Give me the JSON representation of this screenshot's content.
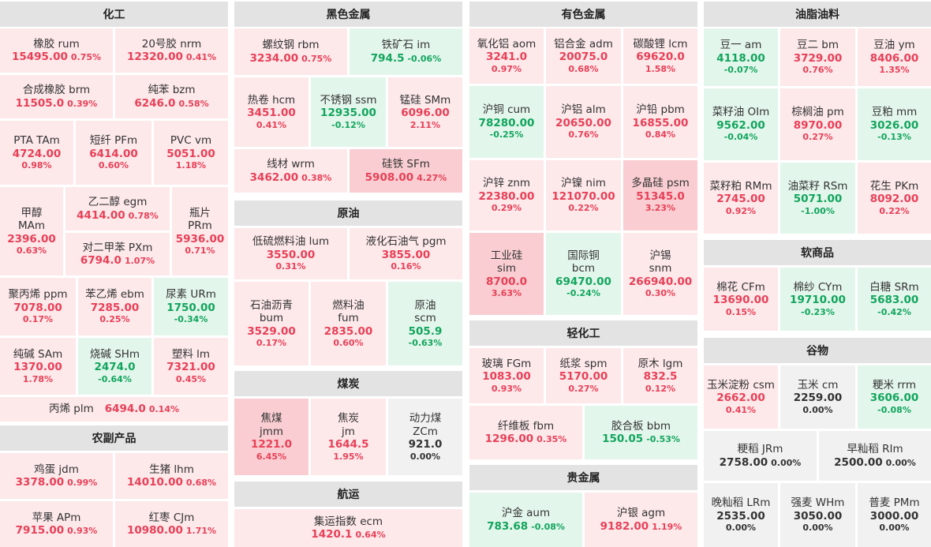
{
  "sections": {
    "huagong": "化工",
    "nongfu": "农副产品",
    "heise": "黑色金属",
    "yuanyou": "原油",
    "meitan": "煤炭",
    "hangyun": "航运",
    "youse": "有色金属",
    "qinghua": "轻化工",
    "guijinshu": "贵金属",
    "youzhi": "油脂油料",
    "ruan": "软商品",
    "guwu": "谷物"
  },
  "colors": {
    "up": "#e84057",
    "down": "#11a55c",
    "flat": "#333333"
  },
  "items": {
    "ru": {
      "name": "橡胶  rum",
      "price": "15495.00",
      "pct": "0.75%"
    },
    "nr": {
      "name": "20号胶  nrm",
      "price": "12320.00",
      "pct": "0.41%"
    },
    "br": {
      "name": "合成橡胶  brm",
      "price": "11505.0",
      "pct": "0.39%"
    },
    "bz": {
      "name": "纯苯  bzm",
      "price": "6246.0",
      "pct": "0.58%"
    },
    "ta": {
      "name": "PTA  TAm",
      "price": "4724.00",
      "pct": "0.98%"
    },
    "pf": {
      "name": "短纤  PFm",
      "price": "6414.00",
      "pct": "0.60%"
    },
    "v": {
      "name": "PVC  vm",
      "price": "5051.00",
      "pct": "1.18%"
    },
    "ma": {
      "name1": "甲醇",
      "name2": "MAm",
      "price": "2396.00",
      "pct": "0.63%"
    },
    "eg": {
      "name": "乙二醇  egm",
      "price": "4414.00",
      "pct": "0.78%"
    },
    "px": {
      "name": "对二甲苯  PXm",
      "price": "6794.0",
      "pct": "1.07%"
    },
    "pr": {
      "name1": "瓶片",
      "name2": "PRm",
      "price": "5936.00",
      "pct": "0.71%"
    },
    "pp": {
      "name": "聚丙烯  ppm",
      "price": "7078.00",
      "pct": "0.17%"
    },
    "eb": {
      "name": "苯乙烯  ebm",
      "price": "7285.00",
      "pct": "0.25%"
    },
    "ur": {
      "name": "尿素  URm",
      "price": "1750.00",
      "pct": "-0.34%"
    },
    "sa": {
      "name": "纯碱  SAm",
      "price": "1370.00",
      "pct": "1.78%"
    },
    "sh": {
      "name": "烧碱  SHm",
      "price": "2474.0",
      "pct": "-0.64%"
    },
    "l": {
      "name": "塑料  lm",
      "price": "7321.00",
      "pct": "0.45%"
    },
    "pl": {
      "name": "丙烯  plm",
      "price": "6494.0",
      "pct": "0.14%"
    },
    "jd": {
      "name": "鸡蛋  jdm",
      "price": "3378.00",
      "pct": "0.99%"
    },
    "lh": {
      "name": "生猪  lhm",
      "price": "14010.00",
      "pct": "0.68%"
    },
    "ap": {
      "name": "苹果  APm",
      "price": "7915.00",
      "pct": "0.93%"
    },
    "cj": {
      "name": "红枣  CJm",
      "price": "10980.00",
      "pct": "1.71%"
    },
    "rb": {
      "name": "螺纹钢  rbm",
      "price": "3234.00",
      "pct": "0.75%"
    },
    "i": {
      "name": "铁矿石  im",
      "price": "794.5",
      "pct": "-0.06%"
    },
    "hc": {
      "name": "热卷  hcm",
      "price": "3451.00",
      "pct": "0.41%"
    },
    "ss": {
      "name": "不锈钢  ssm",
      "price": "12935.00",
      "pct": "-0.12%"
    },
    "sm": {
      "name": "锰硅  SMm",
      "price": "6096.00",
      "pct": "2.11%"
    },
    "wr": {
      "name": "线材  wrm",
      "price": "3462.00",
      "pct": "0.38%"
    },
    "sf": {
      "name": "硅铁  SFm",
      "price": "5908.00",
      "pct": "4.27%"
    },
    "lu": {
      "name": "低硫燃料油  lum",
      "price": "3550.00",
      "pct": "0.31%"
    },
    "pg": {
      "name": "液化石油气  pgm",
      "price": "3855.00",
      "pct": "0.16%"
    },
    "bu": {
      "name1": "石油沥青",
      "name2": "bum",
      "price": "3529.00",
      "pct": "0.17%"
    },
    "fu": {
      "name1": "燃料油",
      "name2": "fum",
      "price": "2835.00",
      "pct": "0.60%"
    },
    "sc": {
      "name1": "原油",
      "name2": "scm",
      "price": "505.9",
      "pct": "-0.63%"
    },
    "jm": {
      "name1": "焦煤",
      "name2": "jmm",
      "price": "1221.0",
      "pct": "6.45%"
    },
    "j": {
      "name1": "焦炭",
      "name2": "jm",
      "price": "1644.5",
      "pct": "1.95%"
    },
    "zc": {
      "name1": "动力煤",
      "name2": "ZCm",
      "price": "921.0",
      "pct": "0.00%"
    },
    "ec": {
      "name": "集运指数  ecm",
      "price": "1420.1",
      "pct": "0.64%"
    },
    "ao": {
      "name": "氧化铝  aom",
      "price": "3241.0",
      "pct": "0.97%"
    },
    "ad": {
      "name": "铝合金  adm",
      "price": "20075.0",
      "pct": "0.68%"
    },
    "lc": {
      "name": "碳酸锂  lcm",
      "price": "69620.0",
      "pct": "1.58%"
    },
    "cu": {
      "name": "沪铜  cum",
      "price": "78280.00",
      "pct": "-0.25%"
    },
    "al": {
      "name": "沪铝  alm",
      "price": "20650.00",
      "pct": "0.76%"
    },
    "pb": {
      "name": "沪铅  pbm",
      "price": "16855.00",
      "pct": "0.84%"
    },
    "zn": {
      "name": "沪锌  znm",
      "price": "22380.00",
      "pct": "0.29%"
    },
    "ni": {
      "name": "沪镍  nim",
      "price": "121070.00",
      "pct": "0.22%"
    },
    "ps": {
      "name": "多晶硅  psm",
      "price": "51345.0",
      "pct": "3.23%"
    },
    "si": {
      "name1": "工业硅",
      "name2": "sim",
      "price": "8700.0",
      "pct": "3.63%"
    },
    "bc": {
      "name1": "国际铜",
      "name2": "bcm",
      "price": "69470.00",
      "pct": "-0.24%"
    },
    "sn": {
      "name1": "沪锡",
      "name2": "snm",
      "price": "266940.00",
      "pct": "0.30%"
    },
    "fg": {
      "name": "玻璃  FGm",
      "price": "1083.00",
      "pct": "0.93%"
    },
    "sp": {
      "name": "纸浆  spm",
      "price": "5170.00",
      "pct": "0.27%"
    },
    "lg": {
      "name": "原木  lgm",
      "price": "832.5",
      "pct": "0.12%"
    },
    "fb": {
      "name": "纤维板  fbm",
      "price": "1296.00",
      "pct": "0.35%"
    },
    "bb": {
      "name": "胶合板  bbm",
      "price": "150.05",
      "pct": "-0.53%"
    },
    "au": {
      "name": "沪金  aum",
      "price": "783.68",
      "pct": "-0.08%"
    },
    "ag": {
      "name": "沪银  agm",
      "price": "9182.00",
      "pct": "1.19%"
    },
    "a": {
      "name": "豆一  am",
      "price": "4118.00",
      "pct": "-0.07%"
    },
    "b": {
      "name": "豆二  bm",
      "price": "3729.00",
      "pct": "0.76%"
    },
    "y": {
      "name": "豆油  ym",
      "price": "8406.00",
      "pct": "1.35%"
    },
    "oi": {
      "name": "菜籽油  OIm",
      "price": "9562.00",
      "pct": "-0.04%"
    },
    "p": {
      "name": "棕榈油  pm",
      "price": "8970.00",
      "pct": "0.27%"
    },
    "m": {
      "name": "豆粕  mm",
      "price": "3026.00",
      "pct": "-0.13%"
    },
    "rm": {
      "name": "菜籽粕  RMm",
      "price": "2745.00",
      "pct": "0.92%"
    },
    "rs": {
      "name": "油菜籽  RSm",
      "price": "5071.00",
      "pct": "-1.00%"
    },
    "pk": {
      "name": "花生  PKm",
      "price": "8092.00",
      "pct": "0.22%"
    },
    "cf": {
      "name": "棉花  CFm",
      "price": "13690.00",
      "pct": "0.15%"
    },
    "cy": {
      "name": "棉纱  CYm",
      "price": "19710.00",
      "pct": "-0.23%"
    },
    "sr": {
      "name": "白糖  SRm",
      "price": "5683.00",
      "pct": "-0.42%"
    },
    "cs": {
      "name": "玉米淀粉  csm",
      "price": "2662.00",
      "pct": "0.41%"
    },
    "c": {
      "name": "玉米  cm",
      "price": "2259.00",
      "pct": "0.00%"
    },
    "rr": {
      "name": "粳米  rrm",
      "price": "3606.00",
      "pct": "-0.08%"
    },
    "jr": {
      "name": "粳稻  JRm",
      "price": "2758.00",
      "pct": "0.00%"
    },
    "ri": {
      "name": "早籼稻  RIm",
      "price": "2500.00",
      "pct": "0.00%"
    },
    "lr": {
      "name": "晚籼稻  LRm",
      "price": "2535.00",
      "pct": "0.00%"
    },
    "wh": {
      "name": "强麦  WHm",
      "price": "3050.00",
      "pct": "0.00%"
    },
    "pm": {
      "name": "普麦  PMm",
      "price": "3000.00",
      "pct": "0.00%"
    }
  }
}
